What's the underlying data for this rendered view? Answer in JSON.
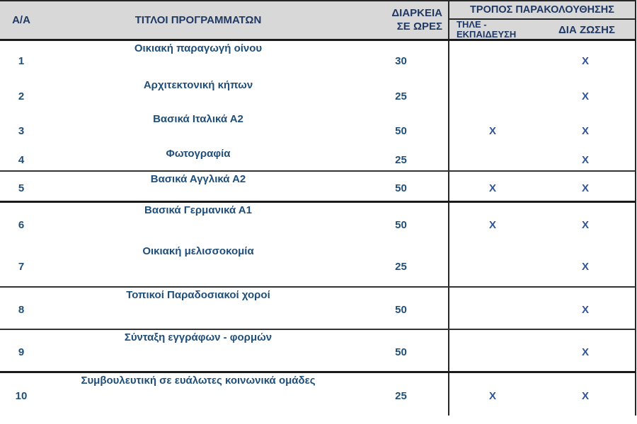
{
  "table": {
    "columns": {
      "index": "Α/Α",
      "title": "ΤΙΤΛΟΙ ΠΡΟΓΡΑΜΜΑΤΩΝ",
      "duration_line1": "ΔΙΑΡΚΕΙΑ",
      "duration_line2": "ΣΕ ΩΡΕΣ",
      "method_group": "ΤΡΟΠΟΣ ΠΑΡΑΚΟΛΟΥΘΗΣΗΣ",
      "tele_line1": "ΤΗΛΕ -",
      "tele_line2": "ΕΚΠΑΙΔΕΥΣΗ",
      "in_person": "ΔΙΑ ΖΩΣΗΣ"
    },
    "mark": "X",
    "rows": [
      {
        "num": "1",
        "title": "Οικιακή παραγωγή οίνου",
        "hours": "30",
        "tele": false,
        "in_person": true
      },
      {
        "num": "2",
        "title": "Αρχιτεκτονική κήπων",
        "hours": "25",
        "tele": false,
        "in_person": true
      },
      {
        "num": "3",
        "title": "Βασικά Ιταλικά Α2",
        "hours": "50",
        "tele": true,
        "in_person": true
      },
      {
        "num": "4",
        "title": "Φωτογραφία",
        "hours": "25",
        "tele": false,
        "in_person": true
      },
      {
        "num": "5",
        "title": "Βασικά Αγγλικά Α2",
        "hours": "50",
        "tele": true,
        "in_person": true
      },
      {
        "num": "6",
        "title": "Βασικά Γερμανικά Α1",
        "hours": "50",
        "tele": true,
        "in_person": true
      },
      {
        "num": "7",
        "title": "Οικιακή μελισσοκομία",
        "hours": "25",
        "tele": false,
        "in_person": true
      },
      {
        "num": "8",
        "title": "Τοπικοί Παραδοσιακοί χοροί",
        "hours": "50",
        "tele": false,
        "in_person": true
      },
      {
        "num": "9",
        "title": "Σύνταξη εγγράφων - φορμών",
        "hours": "50",
        "tele": false,
        "in_person": true
      },
      {
        "num": "10",
        "title": "Συμβουλευτική σε ευάλωτες κοινωνικά ομάδες",
        "hours": "25",
        "tele": true,
        "in_person": true
      }
    ]
  },
  "colors": {
    "header_bg": "#d8d8d8",
    "header_text": "#1f3864",
    "body_text": "#1f4e79",
    "mark_text": "#2f5496",
    "border": "#262626"
  }
}
